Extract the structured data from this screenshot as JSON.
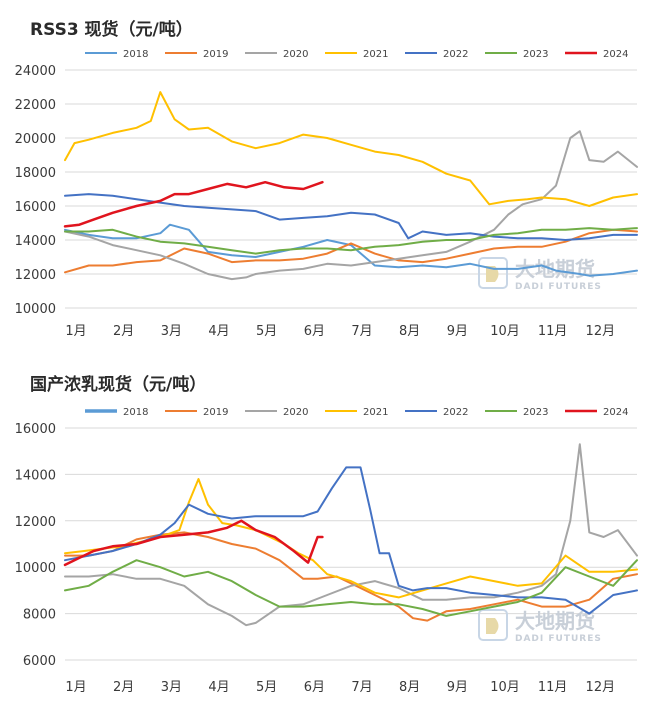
{
  "chart_data": [
    {
      "type": "line",
      "title": "RSS3 现货（元/吨）",
      "xlabel": "",
      "ylabel": "",
      "ylim": [
        10000,
        24000
      ],
      "yticks": [
        10000,
        12000,
        14000,
        16000,
        18000,
        20000,
        22000,
        24000
      ],
      "x_ticks": [
        "1月",
        "2月",
        "3月",
        "4月",
        "5月",
        "6月",
        "7月",
        "8月",
        "9月",
        "10月",
        "11月",
        "12月"
      ],
      "x_domain": [
        0,
        12
      ],
      "grid": "horizontal",
      "legend_position": "top",
      "watermark": {
        "cn": "大地期货",
        "en": "DADI FUTURES"
      },
      "series": [
        {
          "name": "2018",
          "color": "#5b9bd5",
          "width": 2,
          "x": [
            0,
            0.5,
            1,
            1.5,
            2,
            2.2,
            2.6,
            3,
            3.5,
            4,
            4.5,
            5,
            5.5,
            6,
            6.5,
            7,
            7.5,
            8,
            8.5,
            9,
            9.5,
            10,
            10.3,
            10.8,
            11,
            11.5,
            12
          ],
          "values": [
            14600,
            14300,
            14100,
            14100,
            14400,
            14900,
            14600,
            13300,
            13100,
            13000,
            13300,
            13600,
            14000,
            13700,
            12500,
            12400,
            12500,
            12400,
            12600,
            12300,
            12300,
            12500,
            12200,
            12000,
            11900,
            12000,
            12200
          ]
        },
        {
          "name": "2019",
          "color": "#ed7d31",
          "width": 2,
          "x": [
            0,
            0.5,
            1,
            1.5,
            2,
            2.5,
            3,
            3.5,
            4,
            4.5,
            5,
            5.5,
            6,
            6.5,
            7,
            7.5,
            8,
            8.5,
            9,
            9.5,
            10,
            10.5,
            11,
            11.5,
            12
          ],
          "values": [
            12100,
            12500,
            12500,
            12700,
            12800,
            13500,
            13200,
            12700,
            12800,
            12800,
            12900,
            13200,
            13800,
            13200,
            12800,
            12700,
            12900,
            13200,
            13500,
            13600,
            13600,
            13900,
            14400,
            14600,
            14500
          ]
        },
        {
          "name": "2020",
          "color": "#a5a5a5",
          "width": 2,
          "x": [
            0,
            0.5,
            1,
            1.5,
            2,
            2.5,
            3,
            3.5,
            3.8,
            4,
            4.5,
            5,
            5.5,
            6,
            6.5,
            7,
            7.5,
            8,
            8.5,
            9,
            9.3,
            9.6,
            10,
            10.3,
            10.6,
            10.8,
            11,
            11.3,
            11.6,
            12
          ],
          "values": [
            14500,
            14200,
            13700,
            13400,
            13100,
            12600,
            12000,
            11700,
            11800,
            12000,
            12200,
            12300,
            12600,
            12500,
            12700,
            12900,
            13100,
            13300,
            13900,
            14600,
            15500,
            16100,
            16400,
            17200,
            20000,
            20400,
            18700,
            18600,
            19200,
            18300
          ]
        },
        {
          "name": "2021",
          "color": "#ffc000",
          "width": 2,
          "x": [
            0,
            0.2,
            0.5,
            1,
            1.5,
            1.8,
            2,
            2.3,
            2.6,
            3,
            3.5,
            4,
            4.5,
            5,
            5.5,
            6,
            6.5,
            7,
            7.5,
            8,
            8.5,
            8.9,
            9.3,
            9.7,
            10,
            10.5,
            11,
            11.5,
            12
          ],
          "values": [
            18700,
            19700,
            19900,
            20300,
            20600,
            21000,
            22700,
            21100,
            20500,
            20600,
            19800,
            19400,
            19700,
            20200,
            20000,
            19600,
            19200,
            19000,
            18600,
            17900,
            17500,
            16100,
            16300,
            16400,
            16500,
            16400,
            16000,
            16500,
            16700
          ]
        },
        {
          "name": "2022",
          "color": "#4472c4",
          "width": 2,
          "x": [
            0,
            0.5,
            1,
            1.5,
            2,
            2.5,
            3,
            3.5,
            4,
            4.5,
            5,
            5.5,
            6,
            6.5,
            7,
            7.2,
            7.5,
            8,
            8.5,
            9,
            9.5,
            10,
            10.5,
            11,
            11.5,
            12
          ],
          "values": [
            16600,
            16700,
            16600,
            16400,
            16200,
            16000,
            15900,
            15800,
            15700,
            15200,
            15300,
            15400,
            15600,
            15500,
            15000,
            14100,
            14500,
            14300,
            14400,
            14200,
            14100,
            14100,
            14000,
            14100,
            14300,
            14300
          ]
        },
        {
          "name": "2023",
          "color": "#70ad47",
          "width": 2,
          "x": [
            0,
            0.5,
            1,
            1.5,
            2,
            2.5,
            3,
            3.5,
            4,
            4.5,
            5,
            5.5,
            6,
            6.5,
            7,
            7.5,
            8,
            8.5,
            9,
            9.5,
            10,
            10.5,
            11,
            11.5,
            12
          ],
          "values": [
            14500,
            14500,
            14600,
            14200,
            13900,
            13800,
            13600,
            13400,
            13200,
            13400,
            13500,
            13500,
            13400,
            13600,
            13700,
            13900,
            14000,
            14000,
            14300,
            14400,
            14600,
            14600,
            14700,
            14600,
            14700
          ]
        },
        {
          "name": "2024",
          "color": "#e0141e",
          "width": 2.5,
          "x": [
            0,
            0.3,
            0.6,
            1,
            1.5,
            2,
            2.3,
            2.6,
            3,
            3.4,
            3.8,
            4.2,
            4.6,
            5.0,
            5.4
          ],
          "values": [
            14800,
            14900,
            15200,
            15600,
            16000,
            16300,
            16700,
            16700,
            17000,
            17300,
            17100,
            17400,
            17100,
            17000,
            17400
          ]
        }
      ]
    },
    {
      "type": "line",
      "title": "国产浓乳现货（元/吨）",
      "xlabel": "",
      "ylabel": "",
      "ylim": [
        6000,
        16000
      ],
      "yticks": [
        6000,
        8000,
        10000,
        12000,
        14000,
        16000
      ],
      "x_ticks": [
        "1月",
        "2月",
        "3月",
        "4月",
        "5月",
        "6月",
        "7月",
        "8月",
        "9月",
        "10月",
        "11月",
        "12月"
      ],
      "x_domain": [
        0,
        12
      ],
      "grid": "horizontal",
      "legend_position": "top",
      "watermark": {
        "cn": "大地期货",
        "en": "DADI FUTURES"
      },
      "series": [
        {
          "name": "2018",
          "color": "#5b9bd5",
          "width": 3.5,
          "x": [],
          "values": []
        },
        {
          "name": "2019",
          "color": "#ed7d31",
          "width": 2,
          "x": [
            0,
            0.5,
            1,
            1.5,
            2,
            2.5,
            3,
            3.5,
            4,
            4.5,
            5,
            5.3,
            5.7,
            6,
            6.5,
            7,
            7.3,
            7.6,
            8,
            8.5,
            9,
            9.5,
            10,
            10.5,
            11,
            11.5,
            12
          ],
          "values": [
            10500,
            10500,
            10700,
            11200,
            11400,
            11500,
            11300,
            11000,
            10800,
            10300,
            9500,
            9500,
            9600,
            9300,
            8800,
            8300,
            7800,
            7700,
            8100,
            8200,
            8400,
            8600,
            8300,
            8300,
            8600,
            9500,
            9700
          ]
        },
        {
          "name": "2020",
          "color": "#a5a5a5",
          "width": 2,
          "x": [
            0,
            0.5,
            1,
            1.5,
            2,
            2.5,
            3,
            3.5,
            3.8,
            4,
            4.5,
            5,
            5.5,
            6,
            6.5,
            7,
            7.5,
            8,
            8.5,
            9,
            9.5,
            10,
            10.3,
            10.6,
            10.8,
            11,
            11.3,
            11.6,
            12
          ],
          "values": [
            9600,
            9600,
            9700,
            9500,
            9500,
            9200,
            8400,
            7900,
            7500,
            7600,
            8300,
            8400,
            8800,
            9200,
            9400,
            9100,
            8600,
            8600,
            8700,
            8700,
            8900,
            9200,
            9700,
            12000,
            15300,
            11500,
            11300,
            11600,
            10500
          ]
        },
        {
          "name": "2021",
          "color": "#ffc000",
          "width": 2,
          "x": [
            0,
            0.4,
            0.8,
            1.2,
            1.6,
            2.0,
            2.4,
            2.6,
            2.8,
            3.0,
            3.3,
            3.6,
            4.0,
            4.3,
            4.6,
            4.9,
            5.2,
            5.5,
            6.0,
            6.5,
            7.0,
            7.5,
            8,
            8.5,
            9,
            9.5,
            10,
            10.5,
            11,
            11.5,
            12
          ],
          "values": [
            10600,
            10700,
            10800,
            10900,
            11100,
            11300,
            11600,
            12800,
            13800,
            12700,
            11900,
            11800,
            11600,
            11300,
            11000,
            10600,
            10300,
            9700,
            9400,
            8900,
            8700,
            9000,
            9300,
            9600,
            9400,
            9200,
            9300,
            10500,
            9800,
            9800,
            9900
          ]
        },
        {
          "name": "2022",
          "color": "#4472c4",
          "width": 2,
          "x": [
            0,
            0.5,
            1,
            1.5,
            2,
            2.3,
            2.6,
            3,
            3.5,
            4,
            4.5,
            5,
            5.3,
            5.6,
            5.9,
            6.2,
            6.4,
            6.6,
            6.8,
            7.0,
            7.3,
            7.6,
            8,
            8.5,
            9,
            9.5,
            10,
            10.5,
            11,
            11.5,
            12
          ],
          "values": [
            10300,
            10500,
            10700,
            11000,
            11400,
            11900,
            12700,
            12300,
            12100,
            12200,
            12200,
            12200,
            12400,
            13400,
            14300,
            14300,
            12500,
            10600,
            10600,
            9200,
            9000,
            9100,
            9100,
            8900,
            8800,
            8700,
            8700,
            8600,
            8000,
            8800,
            9000
          ]
        },
        {
          "name": "2023",
          "color": "#70ad47",
          "width": 2,
          "x": [
            0,
            0.5,
            1,
            1.5,
            2,
            2.5,
            3,
            3.5,
            4,
            4.5,
            5,
            5.5,
            6,
            6.5,
            7,
            7.5,
            8,
            8.5,
            9,
            9.5,
            10,
            10.5,
            11,
            11.5,
            12
          ],
          "values": [
            9000,
            9200,
            9800,
            10300,
            10000,
            9600,
            9800,
            9400,
            8800,
            8300,
            8300,
            8400,
            8500,
            8400,
            8400,
            8200,
            7900,
            8100,
            8300,
            8500,
            8900,
            10000,
            9600,
            9200,
            10300
          ]
        },
        {
          "name": "2024",
          "color": "#e0141e",
          "width": 2.5,
          "x": [
            0,
            0.3,
            0.6,
            1.0,
            1.5,
            2.0,
            2.5,
            3.0,
            3.4,
            3.7,
            4.0,
            4.4,
            4.8,
            5.1,
            5.3,
            5.4
          ],
          "values": [
            10100,
            10400,
            10700,
            10900,
            11000,
            11300,
            11400,
            11500,
            11700,
            12000,
            11600,
            11300,
            10700,
            10200,
            11300,
            11300
          ]
        }
      ]
    }
  ]
}
